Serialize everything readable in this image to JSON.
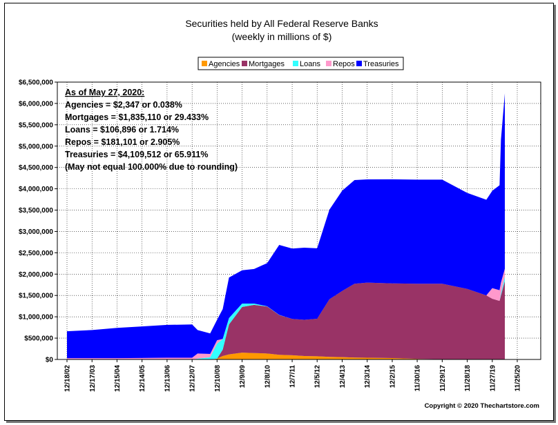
{
  "chart_data": {
    "type": "area",
    "title": "Securities held by All Federal Reserve Banks",
    "subtitle": "(weekly in millions of $)",
    "x_tick_labels": [
      "12/18/02",
      "12/17/03",
      "12/15/04",
      "12/14/05",
      "12/13/06",
      "12/12/07",
      "12/10/08",
      "12/9/09",
      "12/8/10",
      "12/7/11",
      "12/5/12",
      "12/4/13",
      "12/3/14",
      "12/2/15",
      "11/30/16",
      "11/29/17",
      "11/28/18",
      "11/27/19",
      "11/25/20"
    ],
    "y_tick_labels": [
      "$0",
      "$500,000",
      "$1,000,000",
      "$1,500,000",
      "$2,000,000",
      "$2,500,000",
      "$3,000,000",
      "$3,500,000",
      "$4,000,000",
      "$4,500,000",
      "$5,000,000",
      "$5,500,000",
      "$6,000,000",
      "$6,500,000"
    ],
    "ylim": [
      0,
      6500000
    ],
    "stacked": true,
    "legend_position": "top-center",
    "x": [
      "12/18/02",
      "12/17/03",
      "12/15/04",
      "12/14/05",
      "12/13/06",
      "12/12/07",
      "3/1/08",
      "9/1/08",
      "12/10/08",
      "3/1/09",
      "6/1/09",
      "12/9/09",
      "6/1/10",
      "12/8/10",
      "6/1/11",
      "12/7/11",
      "6/1/12",
      "12/5/12",
      "6/1/13",
      "12/4/13",
      "6/1/14",
      "12/3/14",
      "12/2/15",
      "11/30/16",
      "11/29/17",
      "11/28/18",
      "9/1/19",
      "11/27/19",
      "3/11/20",
      "4/1/20",
      "5/27/20"
    ],
    "series": [
      {
        "name": "Agencies",
        "color": "#ff9900",
        "values": [
          0,
          0,
          0,
          0,
          0,
          0,
          0,
          0,
          20000,
          80000,
          120000,
          160000,
          150000,
          140000,
          110000,
          100000,
          80000,
          75000,
          60000,
          55000,
          45000,
          40000,
          33000,
          15000,
          5000,
          3000,
          2400,
          2400,
          2400,
          2400,
          2347
        ]
      },
      {
        "name": "Mortgages",
        "color": "#993366",
        "values": [
          0,
          0,
          0,
          0,
          0,
          0,
          0,
          0,
          0,
          150000,
          700000,
          1070000,
          1130000,
          1100000,
          930000,
          850000,
          850000,
          880000,
          1350000,
          1550000,
          1730000,
          1760000,
          1750000,
          1760000,
          1770000,
          1650000,
          1500000,
          1420000,
          1370000,
          1500000,
          1835110
        ]
      },
      {
        "name": "Loans",
        "color": "#33ffff",
        "values": [
          0,
          0,
          0,
          0,
          0,
          0,
          20000,
          50000,
          350000,
          250000,
          150000,
          80000,
          30000,
          8000,
          5000,
          0,
          0,
          0,
          0,
          0,
          0,
          0,
          0,
          0,
          0,
          0,
          0,
          0,
          0,
          50000,
          106896
        ]
      },
      {
        "name": "Repos",
        "color": "#ff99cc",
        "values": [
          30000,
          30000,
          30000,
          35000,
          40000,
          40000,
          120000,
          80000,
          80000,
          0,
          0,
          0,
          0,
          0,
          0,
          0,
          0,
          0,
          0,
          0,
          0,
          0,
          0,
          0,
          0,
          0,
          0,
          250000,
          250000,
          250000,
          181101
        ]
      },
      {
        "name": "Treasuries",
        "color": "#0000ff",
        "values": [
          630000,
          660000,
          710000,
          740000,
          770000,
          780000,
          550000,
          480000,
          480000,
          700000,
          950000,
          780000,
          810000,
          1010000,
          1640000,
          1650000,
          1690000,
          1650000,
          2100000,
          2350000,
          2430000,
          2420000,
          2440000,
          2440000,
          2440000,
          2250000,
          2240000,
          2280000,
          2460000,
          3350000,
          4109512
        ]
      }
    ],
    "annotation": [
      "As of May 27, 2020:",
      "Agencies = $2,347 or 0.038%",
      "Mortgages = $1,835,110 or 29.433%",
      "Loans = $106,896 or 1.714%",
      "Repos = $181,101 or 2.905%",
      "Treasuries = $4,109,512 or 65.911%",
      "(May not equal 100.000% due to rounding)"
    ],
    "copyright": "Copyright © 2020 Thechartstore.com",
    "grid": true
  }
}
